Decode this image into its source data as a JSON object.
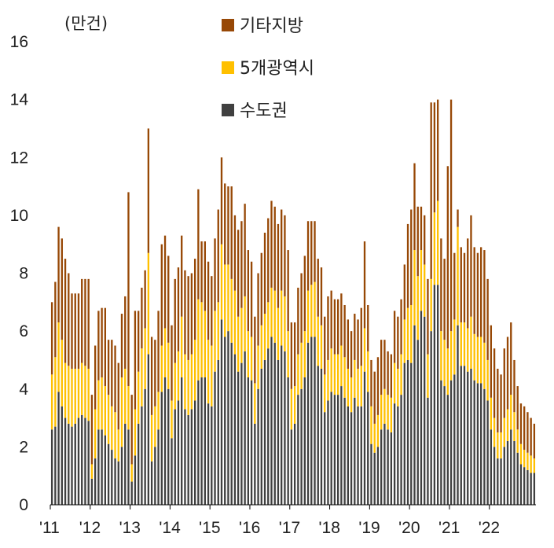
{
  "chart_data": {
    "type": "bar",
    "stacked": true,
    "unit_label": "(만건)",
    "ylim": [
      0,
      16
    ],
    "yticks": [
      0,
      2,
      4,
      6,
      8,
      10,
      12,
      14,
      16
    ],
    "year_labels": [
      "'11",
      "'12",
      "'13",
      "'14",
      "'15",
      "'16",
      "'17",
      "'18",
      "'19",
      "'20",
      "'21",
      "'22"
    ],
    "months_per_year": 12,
    "legend": {
      "placement": "top-center",
      "order": [
        "기타지방",
        "5개광역시",
        "수도권"
      ]
    },
    "series": [
      {
        "name": "수도권",
        "color": "#404040",
        "values": [
          2.6,
          2.7,
          3.9,
          3.4,
          3.0,
          2.8,
          2.7,
          2.8,
          3.0,
          3.1,
          3.0,
          2.9,
          0.9,
          1.6,
          2.6,
          2.6,
          2.4,
          2.1,
          1.9,
          1.6,
          1.5,
          2.0,
          2.8,
          2.6,
          0.8,
          1.7,
          2.8,
          3.4,
          4.0,
          5.2,
          1.5,
          2.0,
          2.6,
          3.9,
          4.4,
          4.0,
          2.3,
          3.3,
          3.6,
          4.4,
          3.3,
          3.1,
          3.3,
          3.6,
          4.3,
          4.4,
          4.4,
          3.5,
          3.4,
          4.6,
          5.0,
          6.4,
          5.8,
          6.0,
          5.6,
          5.2,
          4.6,
          4.9,
          5.3,
          4.4,
          4.3,
          2.8,
          4.0,
          4.7,
          5.0,
          5.4,
          5.8,
          5.6,
          5.0,
          5.5,
          5.3,
          4.4,
          2.6,
          2.8,
          3.8,
          4.0,
          4.4,
          5.6,
          5.8,
          5.8,
          4.8,
          4.7,
          3.2,
          3.6,
          3.9,
          3.8,
          3.8,
          4.1,
          3.7,
          3.4,
          3.2,
          3.7,
          3.4,
          3.4,
          4.6,
          3.9,
          2.1,
          1.8,
          2.0,
          2.6,
          2.8,
          2.6,
          2.5,
          3.5,
          3.4,
          3.8,
          4.9,
          5.0,
          4.9,
          6.2,
          5.7,
          6.7,
          6.5,
          3.7,
          6.0,
          7.6,
          7.6,
          4.3,
          4.1,
          3.8,
          4.3,
          4.5,
          6.2,
          4.8,
          4.8,
          4.6,
          4.7,
          4.3,
          4.2,
          4.2,
          4.0,
          3.6,
          2.6,
          2.0,
          1.6,
          1.6,
          2.0,
          2.2,
          2.6,
          2.2,
          1.8,
          1.4,
          1.3,
          1.2,
          1.1,
          1.1
        ]
      },
      {
        "name": "5개광역시",
        "color": "#FFC000",
        "values": [
          1.9,
          2.4,
          2.4,
          2.3,
          1.9,
          2.0,
          2.0,
          1.9,
          1.7,
          1.8,
          1.8,
          1.8,
          0.5,
          1.7,
          1.7,
          1.8,
          1.7,
          1.7,
          1.5,
          1.6,
          1.1,
          2.4,
          1.9,
          1.5,
          0.6,
          1.6,
          1.8,
          2.0,
          2.1,
          3.5,
          1.6,
          1.4,
          1.3,
          1.6,
          1.7,
          1.6,
          1.3,
          1.6,
          1.7,
          2.1,
          1.9,
          1.9,
          1.9,
          2.1,
          2.8,
          2.6,
          2.3,
          2.2,
          2.1,
          2.1,
          2.0,
          2.6,
          2.5,
          2.3,
          2.2,
          2.2,
          1.9,
          1.9,
          1.9,
          1.6,
          1.5,
          1.4,
          1.5,
          1.5,
          1.6,
          1.6,
          1.7,
          1.8,
          1.8,
          1.9,
          1.9,
          1.6,
          1.4,
          1.3,
          1.4,
          1.6,
          1.6,
          1.8,
          1.8,
          1.9,
          1.7,
          1.5,
          1.3,
          1.4,
          1.5,
          1.4,
          1.4,
          1.4,
          1.4,
          1.3,
          1.2,
          1.3,
          1.3,
          1.4,
          1.5,
          1.4,
          1.3,
          1.0,
          1.1,
          1.2,
          1.2,
          1.2,
          1.2,
          1.4,
          1.3,
          1.4,
          1.5,
          1.8,
          2.0,
          2.6,
          2.2,
          2.1,
          1.8,
          1.5,
          1.8,
          2.5,
          2.9,
          1.7,
          1.6,
          1.6,
          1.7,
          1.9,
          3.4,
          1.5,
          1.5,
          1.5,
          1.8,
          1.6,
          1.6,
          1.6,
          1.6,
          1.4,
          1.1,
          1.0,
          0.9,
          0.9,
          1.0,
          1.1,
          1.2,
          1.0,
          0.8,
          0.7,
          0.6,
          0.6,
          0.6,
          0.5
        ]
      },
      {
        "name": "기타지방",
        "color": "#974806",
        "values": [
          2.5,
          2.6,
          3.3,
          3.5,
          3.6,
          3.2,
          2.6,
          2.6,
          2.6,
          2.9,
          3.0,
          3.1,
          2.4,
          2.2,
          2.4,
          2.4,
          2.7,
          1.9,
          2.3,
          2.3,
          2.3,
          2.2,
          2.5,
          6.7,
          2.4,
          3.4,
          2.1,
          2.1,
          2.0,
          4.3,
          2.7,
          2.3,
          2.8,
          3.5,
          3.2,
          3.0,
          2.6,
          2.9,
          2.9,
          2.8,
          2.9,
          2.9,
          2.8,
          2.8,
          3.8,
          2.1,
          2.4,
          2.7,
          2.4,
          2.5,
          3.2,
          3.0,
          2.8,
          2.7,
          3.2,
          2.6,
          3.0,
          3.0,
          3.2,
          2.8,
          2.6,
          2.3,
          2.5,
          2.5,
          2.8,
          2.9,
          3.0,
          2.9,
          2.9,
          2.8,
          2.8,
          2.8,
          2.3,
          2.2,
          2.3,
          2.4,
          2.6,
          2.4,
          2.2,
          2.1,
          2.0,
          2.0,
          2.0,
          2.2,
          2.0,
          1.9,
          1.9,
          1.8,
          1.8,
          1.7,
          1.6,
          1.6,
          1.7,
          2.0,
          3.0,
          1.6,
          1.6,
          1.8,
          2.0,
          1.9,
          1.7,
          1.5,
          1.5,
          1.8,
          1.8,
          1.9,
          1.9,
          2.9,
          3.3,
          3.0,
          2.4,
          1.5,
          1.7,
          2.6,
          6.1,
          3.8,
          3.5,
          3.2,
          2.8,
          6.3,
          8.0,
          2.3,
          0.6,
          2.6,
          2.4,
          3.1,
          3.5,
          3.0,
          2.9,
          3.1,
          3.2,
          2.8,
          2.5,
          2.4,
          2.2,
          2.0,
          2.4,
          2.5,
          2.5,
          1.8,
          1.5,
          1.4,
          1.5,
          1.4,
          1.3,
          1.2
        ]
      }
    ]
  }
}
